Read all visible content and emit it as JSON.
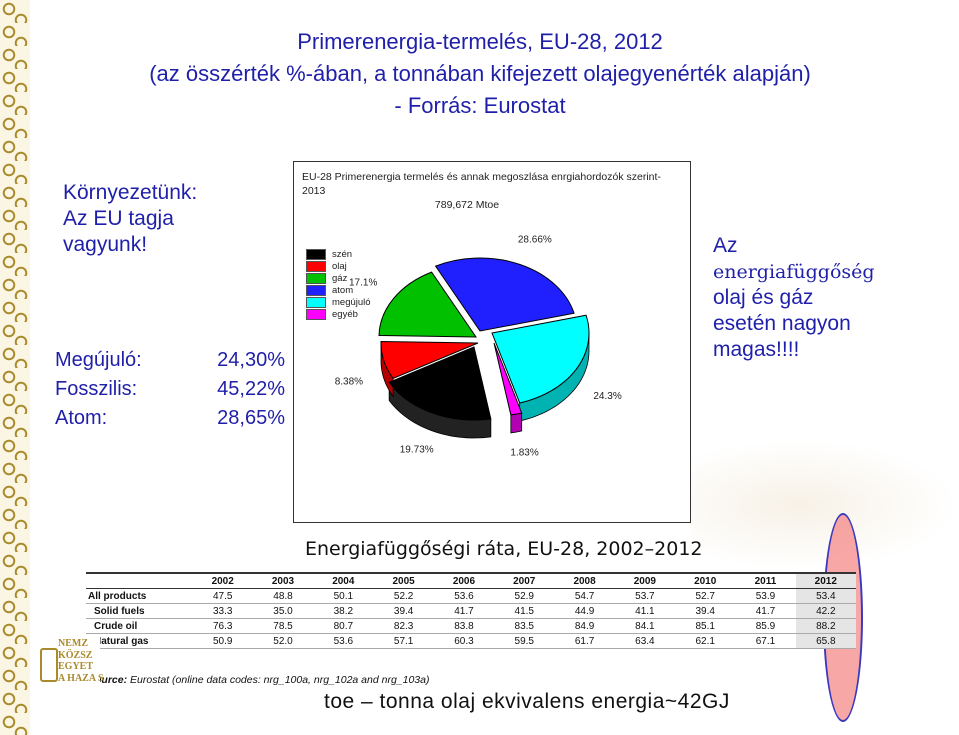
{
  "title": {
    "line1": "Primerenergia-termelés, EU-28, 2012",
    "line2": "(az összérték %-ában, a tonnában kifejezett olajegyenérték alapján)",
    "line3": "- Forrás: Eurostat"
  },
  "left": {
    "line1": "Környezetünk:",
    "line2": "Az EU tagja",
    "line3": "vagyunk!"
  },
  "shares": [
    {
      "label": "Megújuló:",
      "value": "24,30%"
    },
    {
      "label": "Fosszilis:",
      "value": "45,22%"
    },
    {
      "label": "Atom:",
      "value": "28,65%"
    }
  ],
  "right": {
    "line1": "Az",
    "line2": "energiafüggőség",
    "line3": "olaj és gáz",
    "line4": "esetén nagyon",
    "line5": "magas!!!!"
  },
  "chart_data": {
    "type": "pie",
    "title": "EU-28 Primerenergia termelés és annak megoszlása enrgiahordozók szerint-2013",
    "subtitle": "789,672 Mtoe",
    "slices": [
      {
        "name": "szén",
        "value": 19.73,
        "label": "19.73%",
        "color": "#000000"
      },
      {
        "name": "olaj",
        "value": 8.38,
        "label": "8.38%",
        "color": "#ff0000"
      },
      {
        "name": "gáz",
        "value": 17.1,
        "label": "17.1%",
        "color": "#00c000"
      },
      {
        "name": "atom",
        "value": 28.66,
        "label": "28.66%",
        "color": "#2020ff"
      },
      {
        "name": "megújuló",
        "value": 24.3,
        "label": "24.3%",
        "color": "#00ffff"
      },
      {
        "name": "egyéb",
        "value": 1.83,
        "label": "1.83%",
        "color": "#ff00ff"
      }
    ],
    "legend_position": "left"
  },
  "table": {
    "title": "Energiafüggőségi ráta, EU-28, 2002–2012",
    "years": [
      "2002",
      "2003",
      "2004",
      "2005",
      "2006",
      "2007",
      "2008",
      "2009",
      "2010",
      "2011",
      "2012"
    ],
    "rows": [
      {
        "label": "All products",
        "values": [
          "47.5",
          "48.8",
          "50.1",
          "52.2",
          "53.6",
          "52.9",
          "54.7",
          "53.7",
          "52.7",
          "53.9",
          "53.4"
        ]
      },
      {
        "label": "Solid fuels",
        "values": [
          "33.3",
          "35.0",
          "38.2",
          "39.4",
          "41.7",
          "41.5",
          "44.9",
          "41.1",
          "39.4",
          "41.7",
          "42.2"
        ]
      },
      {
        "label": "Crude oil",
        "values": [
          "76.3",
          "78.5",
          "80.7",
          "82.3",
          "83.8",
          "83.5",
          "84.9",
          "84.1",
          "85.1",
          "85.9",
          "88.2"
        ]
      },
      {
        "label": "Natural gas",
        "values": [
          "50.9",
          "52.0",
          "53.6",
          "57.1",
          "60.3",
          "59.5",
          "61.7",
          "63.4",
          "62.1",
          "67.1",
          "65.8"
        ]
      }
    ],
    "source_bold": "Source:",
    "source_rest": " Eurostat (online data codes: nrg_100a, nrg_102a and nrg_103a)"
  },
  "footer": "toe – tonna olaj ekvivalens energia~42GJ",
  "logo": {
    "line1": "NEMZ",
    "line2": "KÖZSZ",
    "line3": "EGYET",
    "line4": "A HAZA S"
  }
}
